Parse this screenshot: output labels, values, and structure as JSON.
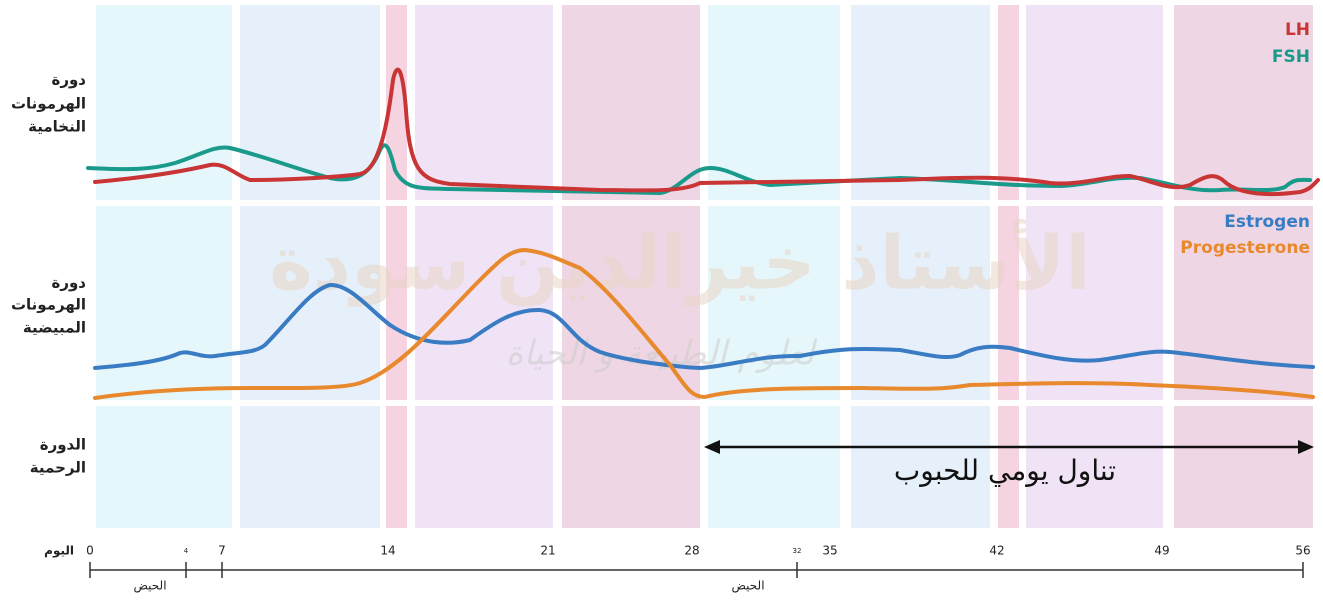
{
  "rows": {
    "pituitary": [
      "دورة",
      "الهرمونات",
      "النخامية"
    ],
    "ovarian": [
      "دورة",
      "الهرمونات",
      "المبيضية"
    ],
    "uterine": [
      "الدورة",
      "الرحمية"
    ]
  },
  "legend": {
    "lh": "LH",
    "fsh": "FSH",
    "estrogen": "Estrogen",
    "progesterone": "Progesterone"
  },
  "pill_label": "تناول يومي للحبوب",
  "watermark": {
    "name": "الأستاذ خيرالدين سودة",
    "subtitle": "لعلوم الطبيعة و الحياة"
  },
  "axis": {
    "title": "اليوم",
    "ticks": [
      "0",
      "4",
      "7",
      "14",
      "21",
      "28",
      "32",
      "35",
      "42",
      "49",
      "56"
    ],
    "menses": [
      "الحيض",
      "الحيض"
    ]
  }
}
